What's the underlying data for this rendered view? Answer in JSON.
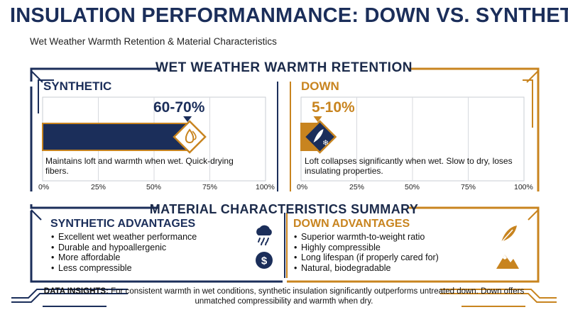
{
  "header": {
    "title": "INSULATION PERFORMANMANCE: DOWN VS. SYNTHETIC",
    "subtitle": "Wet Weather Warmth Retention & Material Characteristics"
  },
  "retention": {
    "section_title": "WET WEATHER WARMTH RETENTION",
    "synthetic": {
      "label": "SYNTHETIC",
      "value_label": "60-70%",
      "description": "Maintains loft and warmth when wet. Quick-drying fibers."
    },
    "down": {
      "label": "DOWN",
      "value_label": "5-10%",
      "description": "Loft collapses significantly when wet. Slow to dry, loses insulating properties."
    }
  },
  "chart_data": {
    "type": "bar",
    "orientation": "horizontal",
    "title": "WET WEATHER WARMTH RETENTION",
    "xlim": [
      0,
      100
    ],
    "x_tick_labels": [
      "0%",
      "25%",
      "50%",
      "75%",
      "100%"
    ],
    "grid": true,
    "series": [
      {
        "name": "SYNTHETIC",
        "range_label": "60-70%",
        "value": 65,
        "range": [
          60,
          70
        ],
        "color": "#1b2e5a",
        "icon": "water-drop-icon"
      },
      {
        "name": "DOWN",
        "range_label": "5-10%",
        "value": 7.5,
        "range": [
          5,
          10
        ],
        "color": "#c8841f",
        "icon": "feather-snowflake-icon"
      }
    ]
  },
  "summary": {
    "section_title": "MATERIAL CHARACTERISTICS SUMMARY",
    "synthetic": {
      "title": "SYNTHETIC ADVANTAGES",
      "items": [
        "Excellent wet weather performance",
        "Durable and hypoallergenic",
        "More affordable",
        "Less compressible"
      ],
      "icons": [
        "rain-cloud-icon",
        "dollar-icon"
      ]
    },
    "down": {
      "title": "DOWN ADVANTAGES",
      "items": [
        "Superior warmth-to-weight ratio",
        "Highly compressible",
        "Long lifespan (if properly cared for)",
        "Natural, biodegradable"
      ],
      "icons": [
        "feather-icon",
        "mountain-icon"
      ]
    }
  },
  "insights": {
    "label": "DATA INSIGHTS:",
    "text": "For consistent warmth in wet conditions, synthetic insulation significantly outperforms untreated down. Down offers unmatched compressibility and warmth when dry."
  },
  "colors": {
    "navy": "#1b2e5a",
    "gold": "#c8841f"
  }
}
